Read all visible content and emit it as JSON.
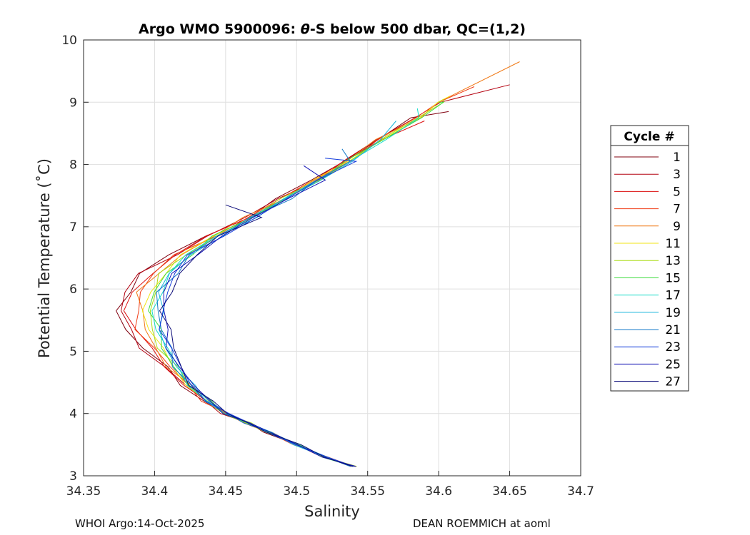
{
  "chart_data": {
    "type": "line",
    "title_prefix": "Argo WMO 5900096: ",
    "title_theta": "θ",
    "title_suffix": "-S below 500 dbar,  QC=(1,2)",
    "xlabel": "Salinity",
    "ylabel": "Potential Temperature (˚C)",
    "xlim": [
      34.35,
      34.7
    ],
    "ylim": [
      3,
      10
    ],
    "xticks": [
      "34.35",
      "34.4",
      "34.45",
      "34.5",
      "34.55",
      "34.6",
      "34.65",
      "34.7"
    ],
    "yticks": [
      "3",
      "4",
      "5",
      "6",
      "7",
      "8",
      "9",
      "10"
    ],
    "grid": true,
    "legend_title": "Cycle #",
    "legend_position": "outside-right",
    "base_curve": [
      [
        34.54,
        3.15
      ],
      [
        34.52,
        3.3
      ],
      [
        34.5,
        3.5
      ],
      [
        34.48,
        3.7
      ],
      [
        34.465,
        3.85
      ],
      [
        34.45,
        4.0
      ],
      [
        34.437,
        4.2
      ],
      [
        34.425,
        4.45
      ],
      [
        34.415,
        4.75
      ],
      [
        34.408,
        5.05
      ],
      [
        34.403,
        5.35
      ],
      [
        34.401,
        5.65
      ],
      [
        34.403,
        5.95
      ],
      [
        34.41,
        6.25
      ],
      [
        34.423,
        6.55
      ],
      [
        34.443,
        6.85
      ],
      [
        34.467,
        7.15
      ],
      [
        34.49,
        7.45
      ],
      [
        34.513,
        7.75
      ],
      [
        34.535,
        8.05
      ],
      [
        34.558,
        8.4
      ],
      [
        34.585,
        8.75
      ],
      [
        34.6,
        9.0
      ]
    ],
    "series": [
      {
        "name": "1",
        "color": "#80000f",
        "dmin": -0.025,
        "dmax": -0.005,
        "top": 8.85,
        "top_s": 34.607
      },
      {
        "name": "3",
        "color": "#b4000f",
        "dmin": -0.025,
        "dmax": -0.002,
        "top": 9.28,
        "top_s": 34.65
      },
      {
        "name": "5",
        "color": "#dc0f0f",
        "dmin": -0.02,
        "dmax": 0.0,
        "top": 8.7,
        "top_s": 34.59
      },
      {
        "name": "7",
        "color": "#f03c14",
        "dmin": -0.015,
        "dmax": 0.0,
        "top": 9.25,
        "top_s": 34.625
      },
      {
        "name": "9",
        "color": "#f07814",
        "dmin": -0.012,
        "dmax": 0.0,
        "top": 9.65,
        "top_s": 34.657
      },
      {
        "name": "11",
        "color": "#f0e614",
        "dmin": -0.008,
        "dmax": 0.003,
        "top": 9.1,
        "top_s": 34.608
      },
      {
        "name": "13",
        "color": "#aadc14",
        "dmin": -0.006,
        "dmax": 0.004,
        "top": 9.05,
        "top_s": 34.603
      },
      {
        "name": "15",
        "color": "#3cdc3c",
        "dmin": -0.004,
        "dmax": 0.005,
        "top": 9.0,
        "top_s": 34.6
      },
      {
        "name": "17",
        "color": "#14dcc8",
        "dmin": -0.002,
        "dmax": 0.006,
        "top": 8.9,
        "top_s": 34.585
      },
      {
        "name": "19",
        "color": "#14b4dc",
        "dmin": 0.0,
        "dmax": 0.007,
        "top": 8.7,
        "top_s": 34.57
      },
      {
        "name": "21",
        "color": "#1478c8",
        "dmin": 0.0,
        "dmax": 0.008,
        "top": 8.25,
        "top_s": 34.532
      },
      {
        "name": "23",
        "color": "#143cdc",
        "dmin": 0.002,
        "dmax": 0.01,
        "top": 8.1,
        "top_s": 34.52
      },
      {
        "name": "25",
        "color": "#1414b4",
        "dmin": 0.002,
        "dmax": 0.012,
        "top": 7.98,
        "top_s": 34.505
      },
      {
        "name": "27",
        "color": "#0a0a78",
        "dmin": 0.004,
        "dmax": 0.015,
        "top": 7.35,
        "top_s": 34.45
      }
    ]
  },
  "footer": {
    "left": "WHOI Argo:14-Oct-2025",
    "right": "DEAN ROEMMICH at aoml"
  }
}
